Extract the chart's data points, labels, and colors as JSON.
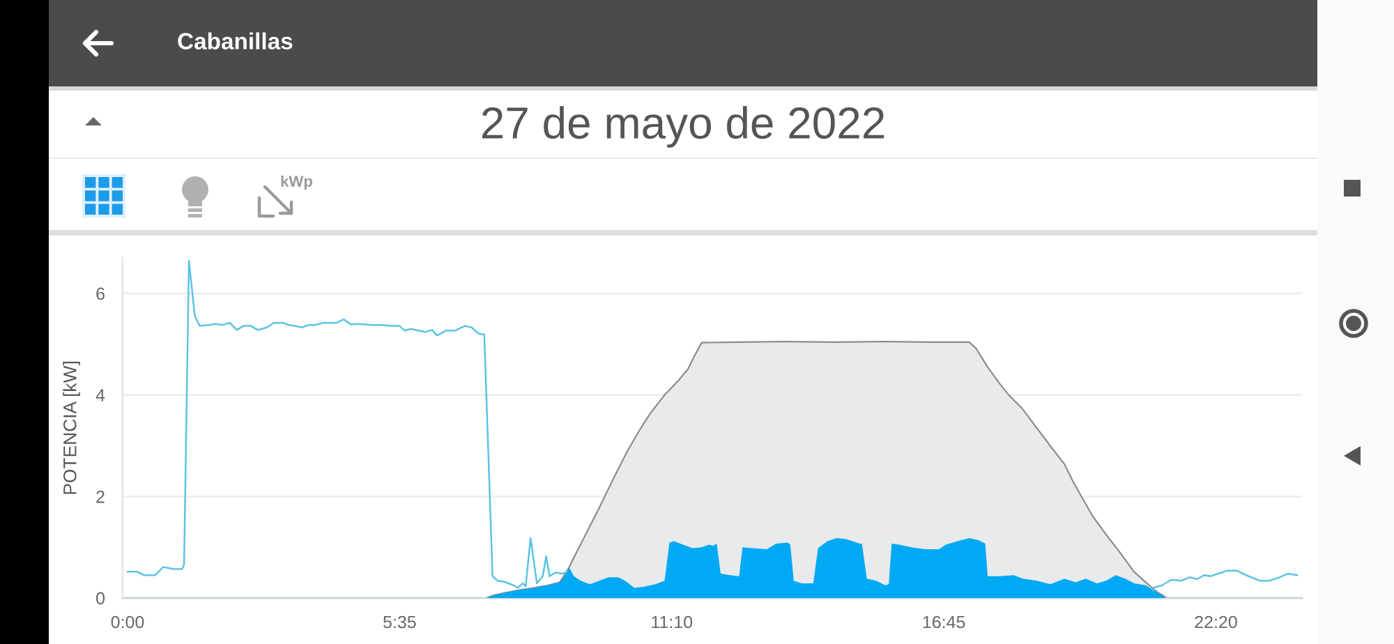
{
  "chart_data": {
    "type": "area",
    "title": "Cabanillas",
    "subtitle": "27 de mayo de 2022",
    "ylabel": "POTENCIA [kW]",
    "annotations": [
      "kWp"
    ],
    "xlim": [
      -0.1,
      24.1
    ],
    "xticks": [
      {
        "value": 0,
        "label": "0:00"
      },
      {
        "value": 5.583333,
        "label": "5:35"
      },
      {
        "value": 11.166667,
        "label": "11:10"
      },
      {
        "value": 16.75,
        "label": "16:45"
      },
      {
        "value": 22.333333,
        "label": "22:20"
      }
    ],
    "ylim": [
      0,
      6.7
    ],
    "yticks": [
      0,
      2,
      4,
      6
    ],
    "grid": "y",
    "series": [
      {
        "color": "#e9eaeb",
        "x": [
          7.35,
          7.54,
          7.78,
          8.06,
          8.35,
          8.63,
          8.87,
          9.06,
          9.16,
          9.4,
          9.69,
          9.97,
          10.26,
          10.54,
          10.73,
          11.02,
          11.3,
          11.5,
          11.64,
          11.78,
          12.5,
          13.5,
          14.5,
          15.5,
          16.5,
          17.27,
          17.41,
          17.65,
          17.89,
          18.08,
          18.36,
          18.65,
          18.94,
          19.23,
          19.42,
          19.61,
          19.8,
          20.08,
          20.37,
          20.65,
          20.94,
          21.14,
          21.33
        ],
        "values": [
          0,
          0.06,
          0.11,
          0.16,
          0.2,
          0.25,
          0.31,
          0.6,
          0.8,
          1.25,
          1.8,
          2.35,
          2.9,
          3.36,
          3.64,
          4.0,
          4.28,
          4.51,
          4.78,
          5.03,
          5.04,
          5.05,
          5.04,
          5.05,
          5.04,
          5.04,
          4.92,
          4.55,
          4.23,
          4.0,
          3.73,
          3.36,
          2.99,
          2.63,
          2.26,
          1.94,
          1.62,
          1.25,
          0.89,
          0.52,
          0.27,
          0.11,
          0
        ]
      },
      {
        "color": "#00a9f4",
        "x": [
          7.35,
          7.54,
          7.78,
          8.06,
          8.35,
          8.63,
          8.87,
          8.97,
          9.06,
          9.16,
          9.3,
          9.49,
          9.68,
          9.87,
          10.07,
          10.21,
          10.4,
          10.59,
          10.83,
          11.02,
          11.12,
          11.21,
          11.4,
          11.6,
          11.78,
          11.93,
          12.02,
          12.09,
          12.17,
          12.36,
          12.55,
          12.62,
          12.83,
          13.12,
          13.31,
          13.55,
          13.6,
          13.67,
          13.83,
          14.07,
          14.17,
          14.36,
          14.55,
          14.74,
          15.03,
          15.07,
          15.17,
          15.36,
          15.55,
          15.62,
          15.68,
          15.84,
          16.08,
          16.36,
          16.65,
          16.79,
          17.03,
          17.27,
          17.46,
          17.6,
          17.65,
          17.89,
          18.18,
          18.37,
          18.66,
          18.94,
          19.22,
          19.46,
          19.66,
          19.89,
          20.08,
          20.28,
          20.47,
          20.66,
          20.9,
          21.04,
          21.31
        ],
        "values": [
          0,
          0.06,
          0.11,
          0.16,
          0.2,
          0.25,
          0.31,
          0.43,
          0.6,
          0.43,
          0.34,
          0.27,
          0.34,
          0.41,
          0.41,
          0.34,
          0.2,
          0.22,
          0.27,
          0.34,
          1.09,
          1.12,
          1.05,
          0.98,
          1.0,
          1.05,
          1.03,
          1.07,
          0.48,
          0.45,
          0.43,
          1.0,
          0.98,
          0.96,
          1.07,
          1.09,
          1.05,
          0.34,
          0.29,
          0.29,
          0.98,
          1.12,
          1.18,
          1.16,
          1.07,
          1.07,
          0.38,
          0.34,
          0.25,
          0.27,
          1.07,
          1.05,
          1.0,
          0.96,
          0.96,
          1.05,
          1.12,
          1.18,
          1.14,
          1.07,
          0.43,
          0.43,
          0.45,
          0.38,
          0.34,
          0.27,
          0.38,
          0.31,
          0.38,
          0.29,
          0.34,
          0.45,
          0.38,
          0.29,
          0.25,
          0.16,
          0
        ]
      },
      {
        "type": "line",
        "color": "#5cc3e3",
        "x": [
          0,
          0.19,
          0.33,
          0.57,
          0.73,
          0.95,
          1.12,
          1.16,
          1.26,
          1.38,
          1.48,
          1.67,
          1.81,
          1.95,
          2.1,
          2.24,
          2.38,
          2.53,
          2.67,
          2.86,
          3.0,
          3.2,
          3.29,
          3.43,
          3.58,
          3.72,
          3.86,
          4.01,
          4.15,
          4.29,
          4.44,
          4.58,
          4.72,
          4.87,
          5.01,
          5.2,
          5.39,
          5.58,
          5.68,
          5.82,
          5.96,
          6.11,
          6.25,
          6.35,
          6.54,
          6.73,
          6.92,
          7.06,
          7.2,
          7.32,
          7.49,
          7.59,
          7.73,
          7.92,
          8.01,
          8.11,
          8.17,
          8.27,
          8.4,
          8.52,
          8.59,
          8.66,
          8.78,
          8.92,
          9.02,
          9.1,
          21.04,
          21.23,
          21.42,
          21.62,
          21.8,
          21.95,
          22.09,
          22.23,
          22.38,
          22.57,
          22.76,
          22.95,
          23.24,
          23.43,
          23.62,
          23.81,
          24.0
        ],
        "values": [
          0.52,
          0.52,
          0.45,
          0.45,
          0.61,
          0.57,
          0.57,
          0.66,
          6.64,
          5.56,
          5.36,
          5.38,
          5.4,
          5.38,
          5.42,
          5.28,
          5.36,
          5.36,
          5.28,
          5.33,
          5.42,
          5.42,
          5.38,
          5.36,
          5.33,
          5.38,
          5.38,
          5.42,
          5.42,
          5.42,
          5.49,
          5.39,
          5.4,
          5.39,
          5.38,
          5.38,
          5.36,
          5.36,
          5.27,
          5.3,
          5.27,
          5.24,
          5.28,
          5.17,
          5.27,
          5.27,
          5.36,
          5.33,
          5.21,
          5.19,
          0.43,
          0.34,
          0.32,
          0.25,
          0.2,
          0.29,
          0.23,
          1.18,
          0.29,
          0.43,
          0.82,
          0.43,
          0.5,
          0.48,
          0.52,
          null,
          0.2,
          0.25,
          0.36,
          0.34,
          0.41,
          0.37,
          0.45,
          0.43,
          0.48,
          0.54,
          0.54,
          0.45,
          0.34,
          0.34,
          0.4,
          0.48,
          0.45
        ]
      }
    ]
  }
}
